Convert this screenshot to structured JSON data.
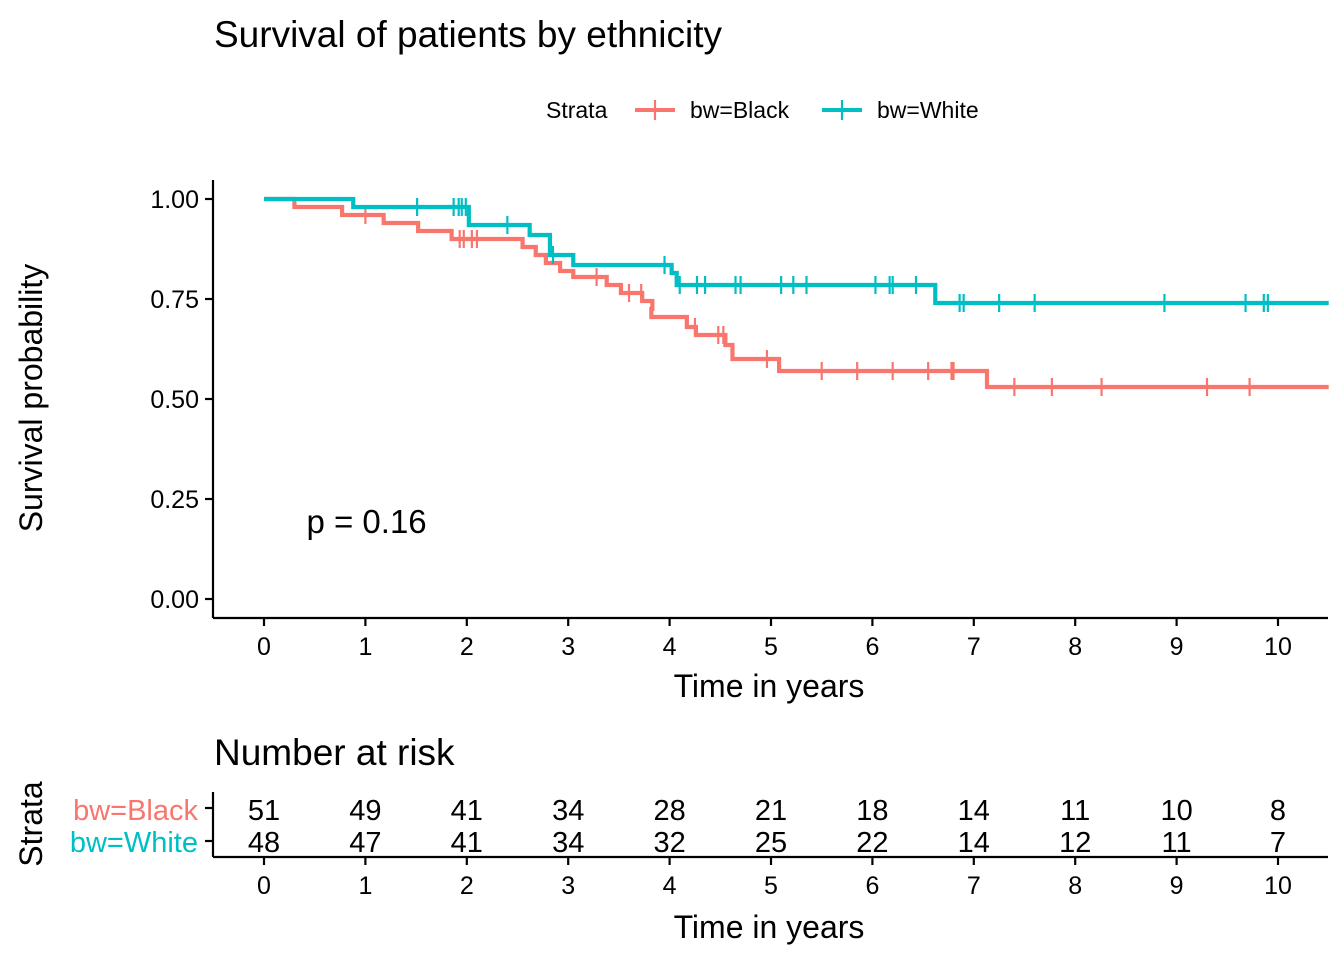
{
  "chart_data": [
    {
      "type": "line",
      "subtype": "kaplan-meier",
      "title": "Survival of patients by ethnicity",
      "xlabel": "Time in years",
      "ylabel": "Survival probability",
      "xlim": [
        -0.5,
        10.5
      ],
      "ylim": [
        -0.05,
        1.05
      ],
      "x_ticks": [
        "0",
        "1",
        "2",
        "3",
        "4",
        "5",
        "6",
        "7",
        "8",
        "9",
        "10"
      ],
      "y_ticks": [
        "0.00",
        "0.25",
        "0.50",
        "0.75",
        "1.00"
      ],
      "grid": false,
      "legend": {
        "title": "Strata",
        "placement": "top",
        "entries": [
          "bw=Black",
          "bw=White"
        ]
      },
      "annotation": "p = 0.16",
      "annotation_pos": {
        "x": 1.05,
        "y": 0.195
      },
      "series": [
        {
          "name": "bw=Black",
          "color": "#F8766D",
          "steps": [
            [
              0,
              1.0
            ],
            [
              0.3,
              0.98
            ],
            [
              0.77,
              0.96
            ],
            [
              1.18,
              0.94
            ],
            [
              1.52,
              0.92
            ],
            [
              1.85,
              0.9
            ],
            [
              2.55,
              0.88
            ],
            [
              2.68,
              0.86
            ],
            [
              2.78,
              0.84
            ],
            [
              2.92,
              0.82
            ],
            [
              3.05,
              0.805
            ],
            [
              3.38,
              0.785
            ],
            [
              3.52,
              0.765
            ],
            [
              3.73,
              0.745
            ],
            [
              3.83,
              0.725
            ],
            [
              3.82,
              0.705
            ],
            [
              4.17,
              0.68
            ],
            [
              4.26,
              0.66
            ],
            [
              4.55,
              0.635
            ],
            [
              4.62,
              0.6
            ],
            [
              5.08,
              0.57
            ],
            [
              7.13,
              0.53
            ]
          ],
          "end": 10.5,
          "censors": [
            [
              1.0,
              0.96
            ],
            [
              1.93,
              0.9
            ],
            [
              1.97,
              0.9
            ],
            [
              2.05,
              0.9
            ],
            [
              2.1,
              0.9
            ],
            [
              3.28,
              0.805
            ],
            [
              3.6,
              0.765
            ],
            [
              3.72,
              0.765
            ],
            [
              4.25,
              0.68
            ],
            [
              4.48,
              0.66
            ],
            [
              4.53,
              0.66
            ],
            [
              4.96,
              0.6
            ],
            [
              5.5,
              0.57
            ],
            [
              5.85,
              0.57
            ],
            [
              6.2,
              0.57
            ],
            [
              6.55,
              0.57
            ],
            [
              6.78,
              0.57
            ],
            [
              6.8,
              0.57
            ],
            [
              7.4,
              0.53
            ],
            [
              7.77,
              0.53
            ],
            [
              8.26,
              0.53
            ],
            [
              9.3,
              0.53
            ],
            [
              9.72,
              0.53
            ]
          ]
        },
        {
          "name": "bw=White",
          "color": "#00BFC4",
          "steps": [
            [
              0,
              1.0
            ],
            [
              0.88,
              0.98
            ],
            [
              2.02,
              0.935
            ],
            [
              2.62,
              0.91
            ],
            [
              2.82,
              0.86
            ],
            [
              3.05,
              0.835
            ],
            [
              4.02,
              0.815
            ],
            [
              4.07,
              0.785
            ],
            [
              6.62,
              0.74
            ]
          ],
          "end": 10.5,
          "censors": [
            [
              1.51,
              0.98
            ],
            [
              1.87,
              0.98
            ],
            [
              1.92,
              0.98
            ],
            [
              1.95,
              0.98
            ],
            [
              1.99,
              0.98
            ],
            [
              2.4,
              0.935
            ],
            [
              2.85,
              0.86
            ],
            [
              3.95,
              0.835
            ],
            [
              4.1,
              0.785
            ],
            [
              4.27,
              0.785
            ],
            [
              4.35,
              0.785
            ],
            [
              4.65,
              0.785
            ],
            [
              4.7,
              0.785
            ],
            [
              5.1,
              0.785
            ],
            [
              5.22,
              0.785
            ],
            [
              5.35,
              0.785
            ],
            [
              6.03,
              0.785
            ],
            [
              6.17,
              0.785
            ],
            [
              6.2,
              0.785
            ],
            [
              6.43,
              0.785
            ],
            [
              6.86,
              0.74
            ],
            [
              6.9,
              0.74
            ],
            [
              7.25,
              0.74
            ],
            [
              7.6,
              0.74
            ],
            [
              8.88,
              0.74
            ],
            [
              9.68,
              0.74
            ],
            [
              9.86,
              0.74
            ],
            [
              9.9,
              0.74
            ]
          ]
        }
      ]
    },
    {
      "type": "table",
      "title": "Number at risk",
      "xlabel": "Time in years",
      "ylabel": "Strata",
      "x_ticks": [
        "0",
        "1",
        "2",
        "3",
        "4",
        "5",
        "6",
        "7",
        "8",
        "9",
        "10"
      ],
      "x": [
        0,
        1,
        2,
        3,
        4,
        5,
        6,
        7,
        8,
        9,
        10
      ],
      "rows": [
        {
          "name": "bw=Black",
          "color": "#F8766D",
          "values": [
            "51",
            "49",
            "41",
            "34",
            "28",
            "21",
            "18",
            "14",
            "11",
            "10",
            "8"
          ]
        },
        {
          "name": "bw=White",
          "color": "#00BFC4",
          "values": [
            "48",
            "47",
            "41",
            "34",
            "32",
            "25",
            "22",
            "14",
            "12",
            "11",
            "7"
          ]
        }
      ]
    }
  ]
}
